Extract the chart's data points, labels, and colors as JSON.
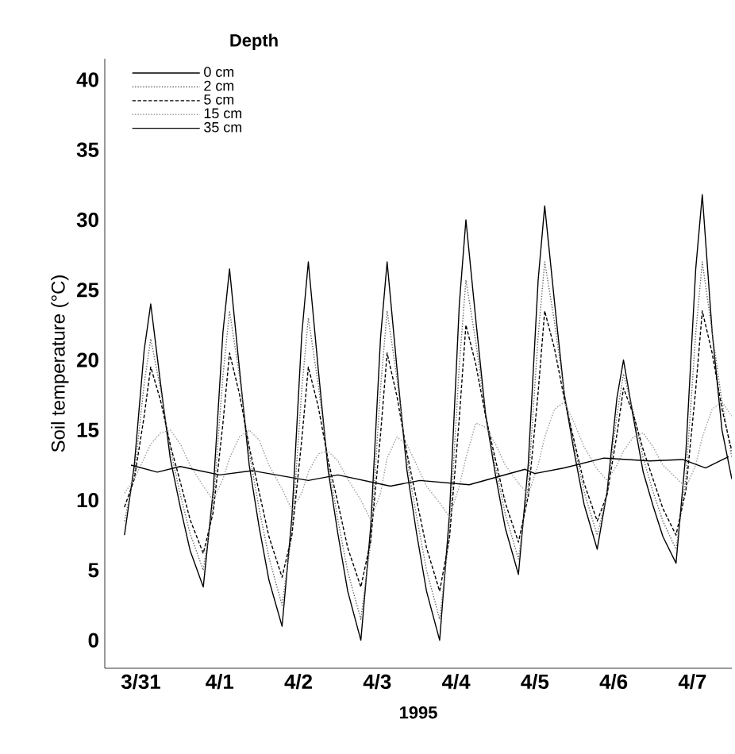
{
  "chart_data": {
    "type": "line",
    "xlabel": "1995",
    "ylabel": "Soil temperature (°C)",
    "legend_title": "Depth",
    "legend": "top left",
    "x": [
      "1995-03-31T07:00",
      "1995-03-31T10:00",
      "1995-03-31T13:00",
      "1995-03-31T15:00",
      "1995-03-31T18:00",
      "1995-03-31T21:00",
      "1995-04-01T00:00",
      "1995-04-01T03:00",
      "1995-04-01T07:00",
      "1995-04-01T10:00",
      "1995-04-01T13:00",
      "1995-04-01T15:00",
      "1995-04-01T18:00",
      "1995-04-01T21:00",
      "1995-04-02T00:00",
      "1995-04-02T03:00",
      "1995-04-02T07:00",
      "1995-04-02T10:00",
      "1995-04-02T13:00",
      "1995-04-02T15:00",
      "1995-04-02T18:00",
      "1995-04-02T21:00",
      "1995-04-03T00:00",
      "1995-04-03T03:00",
      "1995-04-03T07:00",
      "1995-04-03T10:00",
      "1995-04-03T13:00",
      "1995-04-03T15:00",
      "1995-04-03T18:00",
      "1995-04-03T21:00",
      "1995-04-04T00:00",
      "1995-04-04T03:00",
      "1995-04-04T07:00",
      "1995-04-04T10:00",
      "1995-04-04T13:00",
      "1995-04-04T15:00",
      "1995-04-04T18:00",
      "1995-04-04T21:00",
      "1995-04-05T00:00",
      "1995-04-05T03:00",
      "1995-04-05T07:00",
      "1995-04-05T10:00",
      "1995-04-05T13:00",
      "1995-04-05T15:00",
      "1995-04-05T18:00",
      "1995-04-05T21:00",
      "1995-04-06T00:00",
      "1995-04-06T03:00",
      "1995-04-06T07:00",
      "1995-04-06T10:00",
      "1995-04-06T13:00",
      "1995-04-06T15:00",
      "1995-04-06T18:00",
      "1995-04-06T21:00",
      "1995-04-07T00:00",
      "1995-04-07T03:00",
      "1995-04-07T07:00",
      "1995-04-07T10:00",
      "1995-04-07T13:00",
      "1995-04-07T15:00",
      "1995-04-07T18:00",
      "1995-04-07T21:00",
      "1995-04-08T00:00"
    ],
    "series": [
      {
        "name": "0 cm",
        "color": "#000000",
        "line_style": "solid",
        "values": [
          7.5,
          12.5,
          20.7,
          24,
          18.3,
          12.9,
          9.5,
          6.4,
          3.8,
          10.6,
          22.0,
          26.5,
          19.4,
          12.5,
          8.1,
          4.3,
          1.0,
          8.8,
          21.8,
          27,
          19.4,
          12.2,
          7.6,
          3.5,
          0,
          8.1,
          21.6,
          27,
          19.4,
          12.2,
          7.6,
          3.5,
          0,
          9.0,
          24.0,
          30,
          22.9,
          16.1,
          11.8,
          8.0,
          4.7,
          12.6,
          25.7,
          31,
          24.1,
          17.5,
          13.4,
          9.7,
          6.5,
          10.6,
          17.3,
          20,
          15.9,
          12.0,
          9.6,
          7.4,
          5.5,
          13.4,
          26.5,
          31.8,
          22,
          15,
          11.5
        ]
      },
      {
        "name": "2 cm",
        "color": "#666666",
        "line_style": "dotted",
        "values": [
          8.5,
          11.8,
          18.3,
          21.5,
          17.9,
          13.6,
          10.4,
          7.6,
          5.0,
          9.6,
          18.9,
          23.5,
          18.9,
          13.4,
          9.4,
          5.9,
          2.5,
          7.6,
          17.9,
          23,
          18.3,
          12.7,
          8.6,
          4.9,
          1.5,
          7.0,
          18.0,
          23.5,
          18.7,
          12.9,
          8.8,
          5.0,
          1.5,
          7.6,
          19.7,
          25.7,
          21.3,
          16.1,
          12.4,
          9.0,
          5.8,
          11.1,
          21.7,
          27,
          22.7,
          17.6,
          13.9,
          10.6,
          7.5,
          10.4,
          16.1,
          19,
          16.3,
          13.0,
          10.6,
          8.5,
          6.5,
          11.6,
          21.9,
          27,
          22,
          17,
          13
        ]
      },
      {
        "name": "5 cm",
        "color": "#000000",
        "line_style": "dashed",
        "values": [
          9.5,
          11.5,
          16.0,
          19.5,
          17.1,
          13.9,
          11.3,
          8.6,
          6.2,
          9.1,
          15.5,
          20.5,
          17.6,
          13.8,
          10.6,
          7.4,
          4.5,
          7.5,
          14.3,
          19.5,
          16.7,
          12.9,
          9.8,
          6.6,
          3.8,
          7.1,
          14.7,
          20.5,
          17.4,
          13.4,
          10.0,
          6.6,
          3.5,
          7.3,
          15.9,
          22.5,
          19.7,
          16.0,
          12.9,
          9.8,
          7,
          10.3,
          17.7,
          23.5,
          20.8,
          17.2,
          14.2,
          11.2,
          8.5,
          10.4,
          14.7,
          18,
          16.1,
          13.6,
          11.5,
          9.4,
          7.5,
          10.7,
          17.9,
          23.5,
          20.5,
          16.5,
          13.5
        ]
      },
      {
        "name": "15 cm",
        "color": "#999999",
        "line_style": "dotted",
        "values": [
          10.5,
          11.5,
          13,
          14,
          14.8,
          15,
          14,
          12.5,
          11,
          10,
          11.5,
          13,
          14.5,
          15,
          14.3,
          12.5,
          10.8,
          9.3,
          10.5,
          12,
          13.3,
          13.5,
          12.8,
          11.5,
          10,
          8.6,
          10.5,
          13,
          14.5,
          14,
          12.5,
          11,
          9.8,
          8.8,
          11,
          13,
          15.5,
          15.2,
          14,
          12.5,
          11.2,
          10.4,
          12.5,
          14.5,
          16.5,
          17,
          15.5,
          13.8,
          12.2,
          11.4,
          12.5,
          13.5,
          14.5,
          14.8,
          13.8,
          12.5,
          11.6,
          10.9,
          12.5,
          14.5,
          16.5,
          17,
          16
        ]
      },
      {
        "name": "35 cm",
        "color": "#000000",
        "line_style": "solid",
        "x": [
          "1995-03-31T09:00",
          "1995-03-31T17:00",
          "1995-04-01T00:00",
          "1995-04-01T12:00",
          "1995-04-01T22:00",
          "1995-04-02T15:00",
          "1995-04-03T00:00",
          "1995-04-03T16:00",
          "1995-04-04T01:00",
          "1995-04-04T16:00",
          "1995-04-05T09:00",
          "1995-04-05T12:00",
          "1995-04-05T21:00",
          "1995-04-06T09:00",
          "1995-04-06T23:00",
          "1995-04-07T09:00",
          "1995-04-07T16:00",
          "1995-04-07T23:00"
        ],
        "values": [
          12.5,
          12.0,
          12.4,
          11.8,
          12.1,
          11.4,
          11.8,
          11.0,
          11.4,
          11.1,
          12.2,
          11.9,
          12.3,
          13.0,
          12.8,
          12.9,
          12.3,
          13.1
        ]
      }
    ],
    "xlim": [
      "1995-03-31T01:00",
      "1995-04-08T00:00"
    ],
    "xticks": [
      {
        "value": "1995-03-31T12:00",
        "label": "3/31"
      },
      {
        "value": "1995-04-01T12:00",
        "label": "4/1"
      },
      {
        "value": "1995-04-02T12:00",
        "label": "4/2"
      },
      {
        "value": "1995-04-03T12:00",
        "label": "4/3"
      },
      {
        "value": "1995-04-04T12:00",
        "label": "4/4"
      },
      {
        "value": "1995-04-05T12:00",
        "label": "4/5"
      },
      {
        "value": "1995-04-06T12:00",
        "label": "4/6"
      },
      {
        "value": "1995-04-07T12:00",
        "label": "4/7"
      }
    ],
    "ylim": [
      -2,
      41.5
    ],
    "yticks": [
      0,
      5,
      10,
      15,
      20,
      25,
      30,
      35,
      40
    ]
  }
}
